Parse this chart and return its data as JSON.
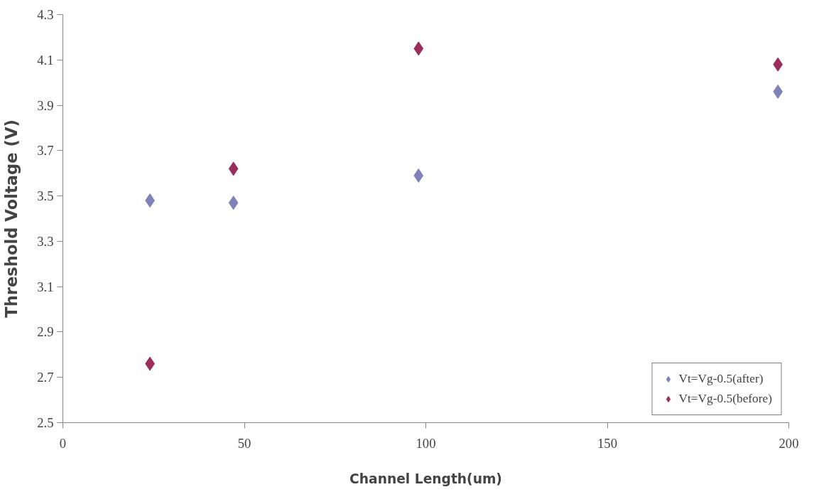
{
  "chart_data": {
    "type": "scatter",
    "xlabel": "Channel Length(um)",
    "ylabel": "Threshold Voltage (V)",
    "xlim": [
      0,
      200
    ],
    "xticks": [
      0,
      50,
      100,
      150,
      200
    ],
    "ylim": [
      2.5,
      4.3
    ],
    "yticks": [
      2.5,
      2.7,
      2.9,
      3.1,
      3.3,
      3.5,
      3.7,
      3.9,
      4.1,
      4.3
    ],
    "marker": "diamond",
    "grid": false,
    "legend": "bottom right",
    "series": [
      {
        "name": "Vt=Vg-0.5(after)",
        "color": "#7f82b8",
        "x": [
          24,
          47,
          98,
          197
        ],
        "values": [
          3.48,
          3.47,
          3.59,
          3.96
        ]
      },
      {
        "name": "Vt=Vg-0.5(before)",
        "color": "#9b2d5c",
        "x": [
          24,
          47,
          98,
          197
        ],
        "values": [
          2.76,
          3.62,
          4.15,
          4.08
        ]
      }
    ]
  }
}
